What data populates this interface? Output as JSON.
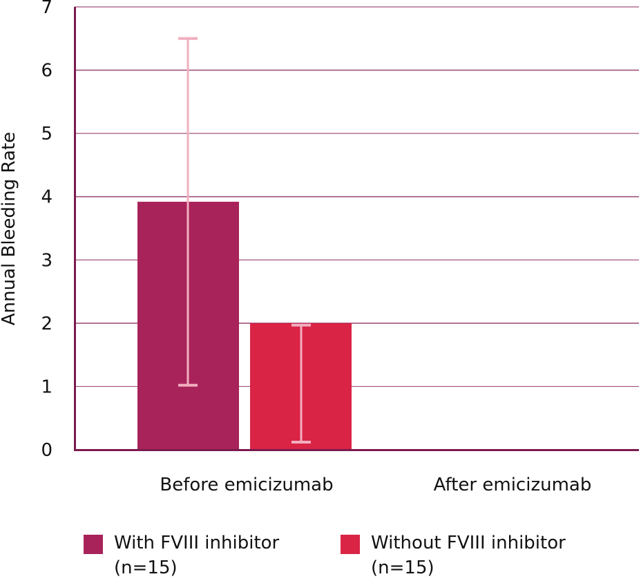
{
  "chart_data": {
    "type": "bar",
    "title": "",
    "xlabel": "",
    "ylabel": "Annual Bleeding Rate",
    "ylim": [
      0,
      7
    ],
    "yticks": [
      0,
      1,
      2,
      3,
      4,
      5,
      6,
      7
    ],
    "grid": true,
    "legend_position": "bottom",
    "categories": [
      "Before emicizumab",
      "After emicizumab"
    ],
    "series": [
      {
        "name": "With FVIII inhibitor (n=15)",
        "label_line1": "With FVIII inhibitor",
        "label_line2": "(n=15)",
        "color": "#A8235A",
        "values": [
          3.92,
          0
        ],
        "error_low": [
          1.02,
          null
        ],
        "error_high": [
          6.5,
          null
        ]
      },
      {
        "name": "Without FVIII inhibitor (n=15)",
        "label_line1": "Without FVIII inhibitor",
        "label_line2": "(n=15)",
        "color": "#D92446",
        "values": [
          2.0,
          0
        ],
        "error_low": [
          0.12,
          null
        ],
        "error_high": [
          1.97,
          null
        ]
      }
    ]
  },
  "colors": {
    "axis": "#7A1A4E",
    "grid": "#A0527C",
    "error_bar": "#F2AFC0"
  }
}
